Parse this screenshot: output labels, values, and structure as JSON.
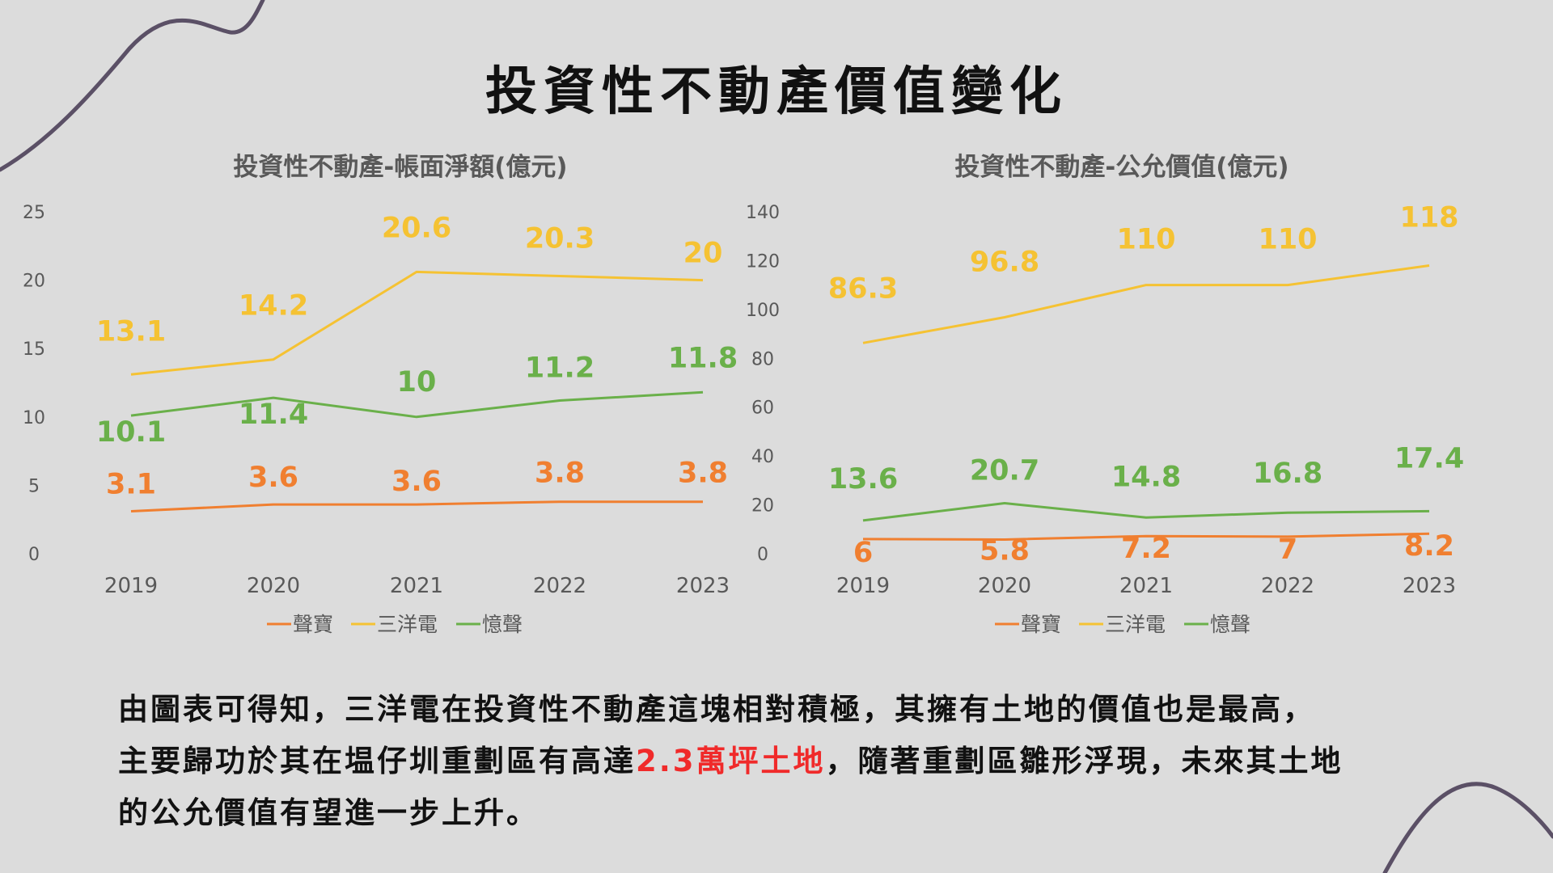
{
  "title": "投資性不動產價值變化",
  "charts": [
    {
      "type": "line",
      "title": "投資性不動產-帳面淨額(億元)",
      "categories": [
        "2019",
        "2020",
        "2021",
        "2022",
        "2023"
      ],
      "ylim": [
        0,
        25
      ],
      "yticks": [
        0,
        5,
        10,
        15,
        20,
        25
      ],
      "series": [
        {
          "name": "聲寶",
          "color": "#f07f30",
          "values": [
            3.1,
            3.6,
            3.6,
            3.8,
            3.8
          ]
        },
        {
          "name": "三洋電",
          "color": "#f5c233",
          "values": [
            13.1,
            14.2,
            20.6,
            20.3,
            20
          ]
        },
        {
          "name": "憶聲",
          "color": "#6ab04a",
          "values": [
            10.1,
            11.4,
            10,
            11.2,
            11.8
          ]
        }
      ]
    },
    {
      "type": "line",
      "title": "投資性不動產-公允價值(億元)",
      "categories": [
        "2019",
        "2020",
        "2021",
        "2022",
        "2023"
      ],
      "ylim": [
        0,
        140
      ],
      "yticks": [
        0,
        20,
        40,
        60,
        80,
        100,
        120,
        140
      ],
      "series": [
        {
          "name": "聲寶",
          "color": "#f07f30",
          "values": [
            6,
            5.8,
            7.2,
            7,
            8.2
          ]
        },
        {
          "name": "三洋電",
          "color": "#f5c233",
          "values": [
            86.3,
            96.8,
            110,
            110,
            118
          ]
        },
        {
          "name": "憶聲",
          "color": "#6ab04a",
          "values": [
            13.6,
            20.7,
            14.8,
            16.8,
            17.4
          ]
        }
      ]
    }
  ],
  "paragraph": {
    "line1": "由圖表可得知，三洋電在投資性不動產這塊相對積極，其擁有土地的價值也是最高，",
    "line2_pre": "主要歸功於其在塭仔圳重劃區有高達",
    "line2_hl": "2.3萬坪土地",
    "line2_post": "，隨著重劃區雛形浮現，未來其土地",
    "line3": "的公允價值有望進一步上升。"
  }
}
